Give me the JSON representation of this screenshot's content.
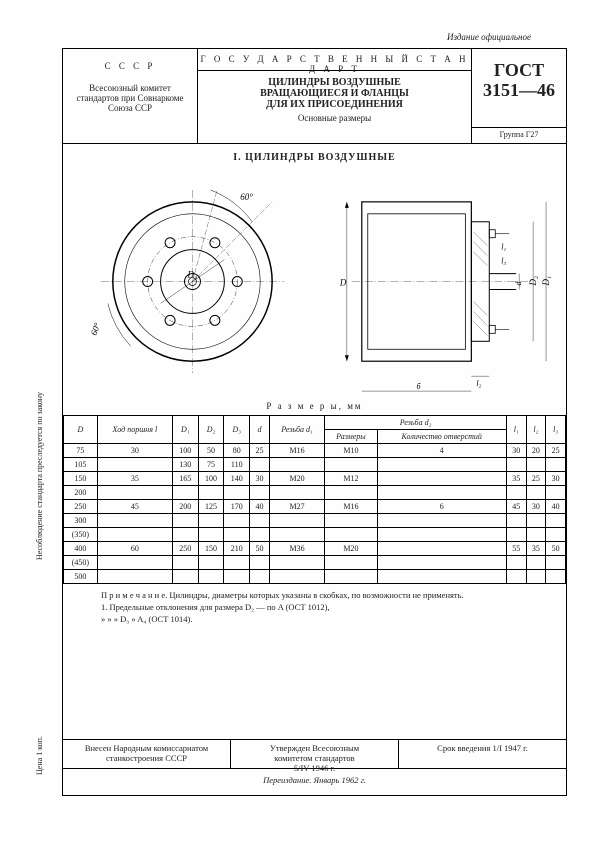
{
  "meta": {
    "edition_note": "Издание официальное",
    "side_note": "Несоблюдение стандарта преследуется по закону",
    "price": "Цена 1 коп."
  },
  "header": {
    "ussr": "С С С Р",
    "committee": "Всесоюзный комитет стандартов при Совнаркоме Союза ССР",
    "gos_standard": "Г О С У Д А Р С Т В Е Н Н Ы Й   С Т А Н Д А Р Т",
    "title1": "ЦИЛИНДРЫ ВОЗДУШНЫЕ",
    "title2": "ВРАЩАЮЩИЕСЯ И ФЛАНЦЫ",
    "title3": "ДЛЯ ИХ ПРИСОЕДИНЕНИЯ",
    "subtitle": "Основные размеры",
    "gost": "ГОСТ",
    "gost_num": "3151—46",
    "group": "Группа Г27"
  },
  "section1": "I. ЦИЛИНДРЫ ВОЗДУШНЫЕ",
  "drawing": {
    "angle1": "60°",
    "angle2": "60°",
    "labels": [
      "D",
      "D₁",
      "D₂",
      "D₃",
      "d",
      "d₁",
      "d₂",
      "l",
      "l₁",
      "l₂",
      "l₃"
    ]
  },
  "dim_table": {
    "title": "Р а з м е р ы,  мм",
    "headers": {
      "D": "D",
      "stroke": "Ход поршня l",
      "D1": "D₁",
      "D2": "D₂",
      "D3": "D₃",
      "d": "d",
      "d1_thread": "Резьба d₁",
      "d2_group": "Резьба d₂",
      "sizes": "Размеры",
      "holes": "Количество отверстий",
      "l1": "l₁",
      "l2": "l₂",
      "l3": "l₃"
    },
    "rows": [
      {
        "D": "75",
        "stroke": "30",
        "D1": "100",
        "D2": "50",
        "D3": "80",
        "d": "25",
        "d1": "М16",
        "sizes": "М10",
        "holes": "4",
        "l1": "30",
        "l2": "20",
        "l3": "25"
      },
      {
        "D": "105",
        "stroke": "",
        "D1": "130",
        "D2": "75",
        "D3": "110",
        "d": "",
        "d1": "",
        "sizes": "",
        "holes": "",
        "l1": "",
        "l2": "",
        "l3": ""
      },
      {
        "D": "150",
        "stroke": "35",
        "D1": "165",
        "D2": "100",
        "D3": "140",
        "d": "30",
        "d1": "М20",
        "sizes": "М12",
        "holes": "",
        "l1": "35",
        "l2": "25",
        "l3": "30"
      },
      {
        "D": "200",
        "stroke": "",
        "D1": "",
        "D2": "",
        "D3": "",
        "d": "",
        "d1": "",
        "sizes": "",
        "holes": "",
        "l1": "",
        "l2": "",
        "l3": ""
      },
      {
        "D": "250",
        "stroke": "45",
        "D1": "200",
        "D2": "125",
        "D3": "170",
        "d": "40",
        "d1": "М27",
        "sizes": "М16",
        "holes": "6",
        "l1": "45",
        "l2": "30",
        "l3": "40"
      },
      {
        "D": "300",
        "stroke": "",
        "D1": "",
        "D2": "",
        "D3": "",
        "d": "",
        "d1": "",
        "sizes": "",
        "holes": "",
        "l1": "",
        "l2": "",
        "l3": ""
      },
      {
        "D": "(350)",
        "stroke": "",
        "D1": "",
        "D2": "",
        "D3": "",
        "d": "",
        "d1": "",
        "sizes": "",
        "holes": "",
        "l1": "",
        "l2": "",
        "l3": ""
      },
      {
        "D": "400",
        "stroke": "60",
        "D1": "250",
        "D2": "150",
        "D3": "210",
        "d": "50",
        "d1": "М36",
        "sizes": "М20",
        "holes": "",
        "l1": "55",
        "l2": "35",
        "l3": "50"
      },
      {
        "D": "(450)",
        "stroke": "",
        "D1": "",
        "D2": "",
        "D3": "",
        "d": "",
        "d1": "",
        "sizes": "",
        "holes": "",
        "l1": "",
        "l2": "",
        "l3": ""
      },
      {
        "D": "500",
        "stroke": "",
        "D1": "",
        "D2": "",
        "D3": "",
        "d": "",
        "d1": "",
        "sizes": "",
        "holes": "",
        "l1": "",
        "l2": "",
        "l3": ""
      }
    ]
  },
  "notes": {
    "note_label": "П р и м е ч а н и е.",
    "note_text": "Цилиндры, диаметры которых указаны в скобках, по возможности не применять.",
    "item1": "1. Предельные отклонения для размера D₂ — по A (ОСТ 1012),",
    "item1b": "»                                »                »       D₃     »   A₄ (ОСТ 1014)."
  },
  "footer": {
    "left": "Внесен Народным комиссариатом станкостроения СССР",
    "mid1": "Утвержден Всесоюзным",
    "mid2": "комитетом стандартов",
    "mid3": "5/IV 1946 г.",
    "right": "Срок введения 1/I 1947 г.",
    "reissue": "Переиздание. Январь 1962 г."
  }
}
